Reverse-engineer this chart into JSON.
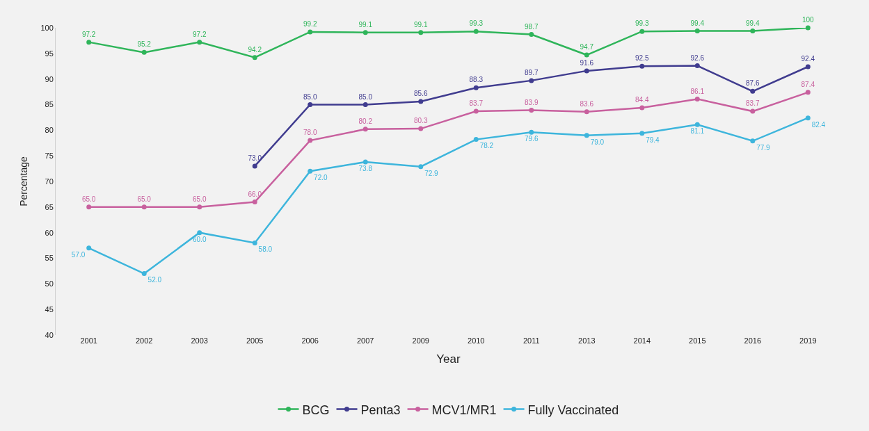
{
  "chart_data": {
    "type": "line",
    "xlabel": "Year",
    "ylabel": "Percentage",
    "categories": [
      "2001",
      "2002",
      "2003",
      "2005",
      "2006",
      "2007",
      "2009",
      "2010",
      "2011",
      "2013",
      "2014",
      "2015",
      "2016",
      "2019"
    ],
    "ylim": [
      40,
      100
    ],
    "yticks": [
      40,
      45,
      50,
      55,
      60,
      65,
      70,
      75,
      80,
      85,
      90,
      95,
      100
    ],
    "grid": false,
    "legend": "bottom",
    "marker": "circle",
    "line_style": "solid",
    "series": [
      {
        "name": "BCG",
        "color": "#2fb55a",
        "values": [
          97.2,
          95.2,
          97.2,
          94.2,
          99.2,
          99.1,
          99.1,
          99.3,
          98.7,
          94.7,
          99.3,
          99.4,
          99.4,
          100
        ],
        "value_labels": [
          "97.2",
          "95.2",
          "97.2",
          "94.2",
          "99.2",
          "99.1",
          "99.1",
          "99.3",
          "98.7",
          "94.7",
          "99.3",
          "99.4",
          "99.4",
          "100"
        ]
      },
      {
        "name": "Penta3",
        "color": "#403c8f",
        "values": [
          null,
          null,
          null,
          73.0,
          85.0,
          85.0,
          85.6,
          88.3,
          89.7,
          91.6,
          92.5,
          92.6,
          87.6,
          92.4
        ],
        "value_labels": [
          null,
          null,
          null,
          "73.0",
          "85.0",
          "85.0",
          "85.6",
          "88.3",
          "89.7",
          "91.6",
          "92.5",
          "92.6",
          "87.6",
          "92.4"
        ]
      },
      {
        "name": "MCV1/MR1",
        "color": "#c8609e",
        "values": [
          65.0,
          65.0,
          65.0,
          66.0,
          78.0,
          80.2,
          80.3,
          83.7,
          83.9,
          83.6,
          84.4,
          86.1,
          83.7,
          87.4
        ],
        "value_labels": [
          "65.0",
          "65.0",
          "65.0",
          "66.0",
          "78.0",
          "80.2",
          "80.3",
          "83.7",
          "83.9",
          "83.6",
          "84.4",
          "86.1",
          "83.7",
          "87.4"
        ]
      },
      {
        "name": "Fully Vaccinated",
        "color": "#3db5dc",
        "values": [
          57.0,
          52.0,
          60.0,
          58.0,
          72.0,
          73.8,
          72.9,
          78.2,
          79.6,
          79.0,
          79.4,
          81.1,
          77.9,
          82.4
        ],
        "value_labels": [
          "57.0",
          "52.0",
          "60.0",
          "58.0",
          "72.0",
          "73.8",
          "72.9",
          "78.2",
          "79.6",
          "79.0",
          "79.4",
          "81.1",
          "77.9",
          "82.4"
        ]
      }
    ]
  }
}
